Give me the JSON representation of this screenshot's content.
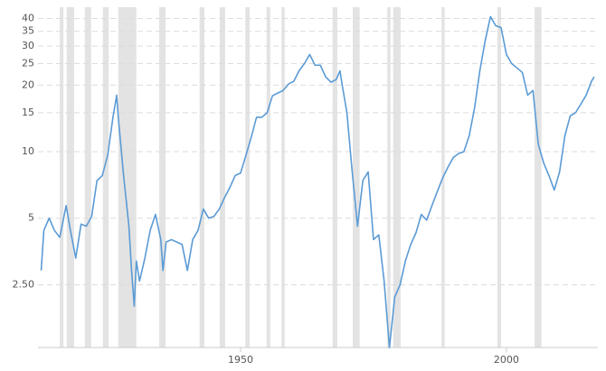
{
  "chart_data": {
    "type": "line",
    "log_y": true,
    "grid": true,
    "xlim": [
      1911.9,
      2017.2
    ],
    "xticks": [
      1950,
      2000
    ],
    "ylim": [
      1.3,
      45
    ],
    "yticks": [
      {
        "value": 2.5,
        "label": "2.50"
      },
      5,
      10,
      15,
      20,
      25,
      30,
      35,
      40
    ],
    "shaded_ranges": [
      [
        1916.0,
        1916.7
      ],
      [
        1917.3,
        1918.7
      ],
      [
        1920.7,
        1921.9
      ],
      [
        1924.1,
        1925.2
      ],
      [
        1927.0,
        1930.4
      ],
      [
        1934.7,
        1935.9
      ],
      [
        1942.3,
        1943.2
      ],
      [
        1946.1,
        1947.1
      ],
      [
        1950.9,
        1951.7
      ],
      [
        1954.9,
        1955.6
      ],
      [
        1957.7,
        1958.3
      ],
      [
        1967.3,
        1968.2
      ],
      [
        1971.1,
        1972.4
      ],
      [
        1977.6,
        1978.2
      ],
      [
        1978.7,
        1980.1
      ],
      [
        1987.8,
        1988.4
      ],
      [
        1998.3,
        1999.0
      ],
      [
        2005.3,
        2006.6
      ]
    ],
    "shade_color": "#e3e3e3",
    "series": [
      {
        "color": "#5b9bd5",
        "x": [
          1912.5,
          1913,
          1914,
          1915,
          1916,
          1917.2,
          1918,
          1919,
          1920,
          1921,
          1922,
          1923,
          1924,
          1925,
          1926,
          1926.7,
          1927,
          1928,
          1929,
          1929.5,
          1930,
          1930.4,
          1931,
          1932,
          1933,
          1934,
          1935,
          1935.4,
          1936,
          1937,
          1938,
          1939,
          1940,
          1941,
          1942,
          1943,
          1944,
          1945,
          1946,
          1947,
          1948,
          1949,
          1950,
          1951,
          1952,
          1953,
          1954,
          1955,
          1956,
          1957,
          1958,
          1959,
          1960,
          1961,
          1962,
          1963,
          1964,
          1965,
          1966,
          1967,
          1968,
          1968.7,
          1969,
          1970,
          1971,
          1972,
          1973,
          1974,
          1975,
          1976,
          1977,
          1978,
          1979,
          1980,
          1981,
          1982,
          1983,
          1984,
          1985,
          1986,
          1987,
          1988,
          1989,
          1990,
          1991,
          1992,
          1993,
          1994,
          1995,
          1996,
          1997,
          1998,
          1999,
          2000,
          2001,
          2002,
          2003,
          2004,
          2005,
          2006,
          2007,
          2008,
          2009,
          2010,
          2011,
          2012,
          2013,
          2014,
          2015,
          2016,
          2016.5
        ],
        "values": [
          2.9,
          4.4,
          5.0,
          4.4,
          4.1,
          5.7,
          4.4,
          3.3,
          4.7,
          4.6,
          5.1,
          7.4,
          7.8,
          9.6,
          14.3,
          18.0,
          14.3,
          7.8,
          4.6,
          2.9,
          2.0,
          3.2,
          2.6,
          3.3,
          4.4,
          5.2,
          4.0,
          2.9,
          3.9,
          4.0,
          3.9,
          3.8,
          2.9,
          4.0,
          4.4,
          5.5,
          5.0,
          5.1,
          5.5,
          6.2,
          6.9,
          7.8,
          8.0,
          9.6,
          11.6,
          14.3,
          14.3,
          15.0,
          17.9,
          18.4,
          18.9,
          20.2,
          20.8,
          23.2,
          25.0,
          27.5,
          24.6,
          24.6,
          21.8,
          20.6,
          21.2,
          23.2,
          20.8,
          15.0,
          8.1,
          4.6,
          7.4,
          8.1,
          4.0,
          4.2,
          2.6,
          1.3,
          2.2,
          2.5,
          3.2,
          3.8,
          4.3,
          5.2,
          4.9,
          5.7,
          6.6,
          7.6,
          8.5,
          9.4,
          9.8,
          10,
          11.8,
          15.7,
          23.2,
          31.7,
          40.8,
          37.1,
          36.4,
          27.5,
          25.0,
          23.9,
          22.8,
          18.0,
          18.9,
          10.8,
          8.9,
          7.8,
          6.7,
          8.1,
          11.8,
          14.5,
          15.0,
          16.4,
          18.0,
          20.8,
          21.8
        ]
      }
    ]
  }
}
